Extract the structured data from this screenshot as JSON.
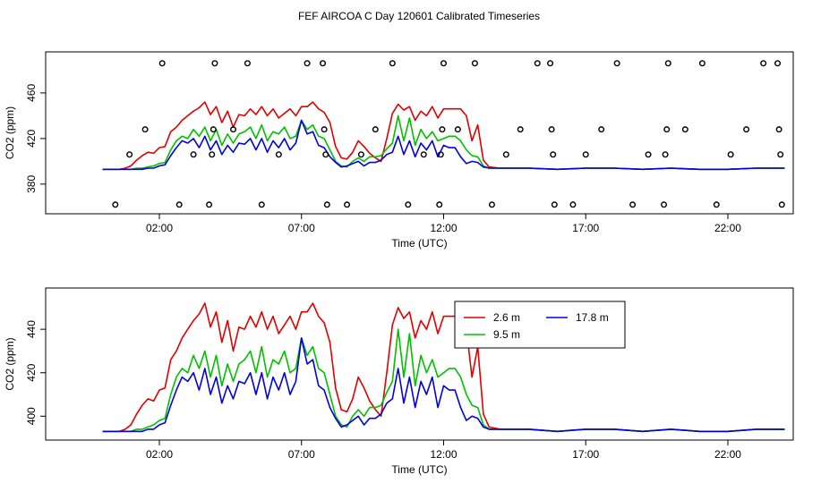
{
  "title": "FEF AIRCOA C  Day 120601  Calibrated Timeseries",
  "colors": {
    "s1": "#e00000",
    "s2": "#00c000",
    "s3": "#0000e0",
    "axis": "#000000"
  },
  "chart_data": [
    {
      "type": "line",
      "xlabel": "Time (UTC)",
      "ylabel": "CO2 (ppm)",
      "x_ticks": [
        "02:00",
        "07:00",
        "12:00",
        "17:00",
        "22:00"
      ],
      "x_tick_hours": [
        2,
        7,
        12,
        17,
        22
      ],
      "y_ticks": [
        380,
        420,
        460
      ],
      "xlim": [
        -2.0,
        24.3
      ],
      "ylim": [
        354,
        496
      ],
      "x_hours": [
        0,
        0.2,
        0.4,
        0.6,
        0.8,
        1,
        1.2,
        1.4,
        1.6,
        1.8,
        2,
        2.2,
        2.4,
        2.6,
        2.8,
        3,
        3.2,
        3.4,
        3.6,
        3.8,
        4,
        4.2,
        4.4,
        4.6,
        4.8,
        5,
        5.2,
        5.4,
        5.6,
        5.8,
        6,
        6.2,
        6.4,
        6.6,
        6.8,
        7,
        7.2,
        7.4,
        7.6,
        7.8,
        8,
        8.2,
        8.4,
        8.6,
        8.8,
        9,
        9.2,
        9.4,
        9.6,
        9.8,
        10,
        10.2,
        10.4,
        10.6,
        10.8,
        11,
        11.2,
        11.4,
        11.6,
        11.8,
        12,
        12.2,
        12.4,
        12.6,
        12.8,
        13,
        13.2,
        13.4,
        13.6,
        14,
        15,
        16,
        17,
        18,
        19,
        20,
        21,
        22,
        23,
        24
      ],
      "series": [
        {
          "name": "2.6 m",
          "color": "#e00000",
          "values": [
            393,
            393,
            393,
            393,
            394,
            396,
            401,
            405,
            408,
            407,
            412,
            413,
            426,
            430,
            436,
            440,
            444,
            447,
            452,
            441,
            448,
            434,
            444,
            430,
            441,
            440,
            446,
            441,
            448,
            440,
            446,
            438,
            442,
            446,
            440,
            448,
            448,
            452,
            446,
            443,
            434,
            413,
            403,
            402,
            408,
            418,
            413,
            407,
            403,
            400,
            420,
            442,
            450,
            445,
            448,
            436,
            444,
            440,
            448,
            438,
            446,
            446,
            446,
            446,
            440,
            418,
            432,
            401,
            395,
            394,
            394,
            393,
            394,
            394,
            393,
            394,
            393,
            393,
            394,
            394
          ]
        },
        {
          "name": "9.5 m",
          "color": "#00c000",
          "values": [
            393,
            393,
            393,
            393,
            393,
            393,
            394,
            394,
            395,
            396,
            398,
            399,
            410,
            418,
            422,
            420,
            428,
            422,
            430,
            418,
            428,
            414,
            424,
            416,
            424,
            426,
            430,
            420,
            432,
            418,
            426,
            424,
            430,
            420,
            422,
            436,
            428,
            432,
            422,
            420,
            410,
            400,
            396,
            395,
            400,
            403,
            400,
            404,
            404,
            405,
            411,
            416,
            440,
            418,
            438,
            414,
            428,
            420,
            426,
            418,
            420,
            422,
            422,
            418,
            410,
            405,
            404,
            396,
            394,
            394,
            394,
            393,
            394,
            394,
            393,
            394,
            393,
            393,
            394,
            394
          ]
        },
        {
          "name": "17.8 m",
          "color": "#0000e0",
          "values": [
            393,
            393,
            393,
            393,
            393,
            393,
            393,
            393,
            394,
            394,
            396,
            397,
            405,
            412,
            418,
            416,
            420,
            412,
            422,
            410,
            418,
            406,
            414,
            408,
            416,
            415,
            420,
            410,
            420,
            408,
            418,
            412,
            420,
            410,
            416,
            436,
            424,
            426,
            414,
            412,
            404,
            399,
            395,
            396,
            398,
            400,
            396,
            399,
            399,
            401,
            406,
            408,
            422,
            406,
            418,
            404,
            416,
            410,
            418,
            404,
            414,
            412,
            412,
            404,
            398,
            400,
            399,
            395,
            394,
            394,
            394,
            393,
            394,
            394,
            393,
            394,
            393,
            393,
            394,
            394
          ]
        }
      ],
      "flag_points": [
        {
          "x": 0.45,
          "y": 362
        },
        {
          "x": 0.95,
          "y": 406
        },
        {
          "x": 1.5,
          "y": 428
        },
        {
          "x": 2.1,
          "y": 486
        },
        {
          "x": 2.7,
          "y": 362
        },
        {
          "x": 3.2,
          "y": 406
        },
        {
          "x": 3.75,
          "y": 362
        },
        {
          "x": 3.85,
          "y": 406
        },
        {
          "x": 3.9,
          "y": 428
        },
        {
          "x": 3.95,
          "y": 486
        },
        {
          "x": 4.6,
          "y": 428
        },
        {
          "x": 5.1,
          "y": 486
        },
        {
          "x": 5.6,
          "y": 362
        },
        {
          "x": 6.2,
          "y": 406
        },
        {
          "x": 7.2,
          "y": 486
        },
        {
          "x": 7.75,
          "y": 486
        },
        {
          "x": 7.8,
          "y": 428
        },
        {
          "x": 7.85,
          "y": 406
        },
        {
          "x": 7.9,
          "y": 362
        },
        {
          "x": 8.6,
          "y": 362
        },
        {
          "x": 9.1,
          "y": 406
        },
        {
          "x": 9.6,
          "y": 428
        },
        {
          "x": 10.2,
          "y": 486
        },
        {
          "x": 10.75,
          "y": 362
        },
        {
          "x": 11.3,
          "y": 406
        },
        {
          "x": 11.85,
          "y": 362
        },
        {
          "x": 11.9,
          "y": 406
        },
        {
          "x": 11.95,
          "y": 428
        },
        {
          "x": 12.0,
          "y": 486
        },
        {
          "x": 12.5,
          "y": 428
        },
        {
          "x": 13.1,
          "y": 486
        },
        {
          "x": 13.7,
          "y": 362
        },
        {
          "x": 14.2,
          "y": 406
        },
        {
          "x": 14.7,
          "y": 428
        },
        {
          "x": 15.3,
          "y": 486
        },
        {
          "x": 15.75,
          "y": 486
        },
        {
          "x": 15.8,
          "y": 428
        },
        {
          "x": 15.85,
          "y": 406
        },
        {
          "x": 15.9,
          "y": 362
        },
        {
          "x": 16.55,
          "y": 362
        },
        {
          "x": 17.0,
          "y": 406
        },
        {
          "x": 17.55,
          "y": 428
        },
        {
          "x": 18.1,
          "y": 486
        },
        {
          "x": 18.65,
          "y": 362
        },
        {
          "x": 19.2,
          "y": 406
        },
        {
          "x": 19.75,
          "y": 362
        },
        {
          "x": 19.8,
          "y": 406
        },
        {
          "x": 19.85,
          "y": 428
        },
        {
          "x": 19.9,
          "y": 486
        },
        {
          "x": 20.5,
          "y": 428
        },
        {
          "x": 21.1,
          "y": 486
        },
        {
          "x": 21.6,
          "y": 362
        },
        {
          "x": 22.1,
          "y": 406
        },
        {
          "x": 22.65,
          "y": 428
        },
        {
          "x": 23.25,
          "y": 486
        },
        {
          "x": 23.75,
          "y": 486
        },
        {
          "x": 23.8,
          "y": 428
        },
        {
          "x": 23.85,
          "y": 406
        },
        {
          "x": 23.9,
          "y": 362
        }
      ]
    },
    {
      "type": "line",
      "xlabel": "Time (UTC)",
      "ylabel": "CO2 (ppm)",
      "x_ticks": [
        "02:00",
        "07:00",
        "12:00",
        "17:00",
        "22:00"
      ],
      "x_tick_hours": [
        2,
        7,
        12,
        17,
        22
      ],
      "y_ticks": [
        400,
        420,
        440
      ],
      "xlim": [
        -2.0,
        24.3
      ],
      "ylim": [
        389,
        459
      ],
      "legend": {
        "placement": "top-right",
        "entries": [
          "2.6 m",
          "17.8 m",
          "9.5 m"
        ]
      },
      "series_ref": "same as chart 1"
    }
  ]
}
